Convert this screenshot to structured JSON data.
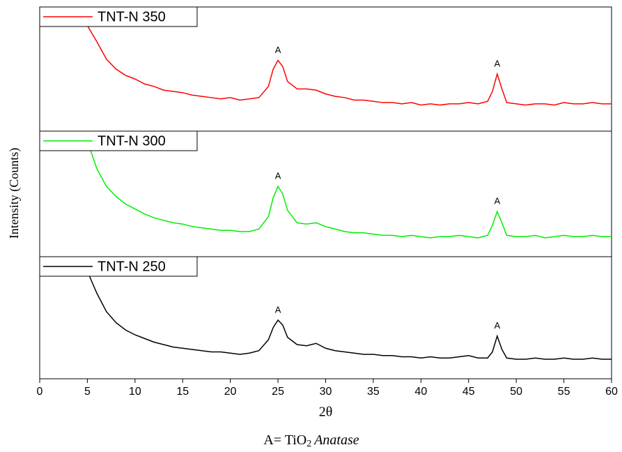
{
  "chart_data": [
    {
      "type": "line",
      "xlim": [
        0,
        60
      ],
      "ylim": [
        0,
        100
      ],
      "x": [
        5,
        6,
        7,
        8,
        9,
        10,
        11,
        12,
        13,
        14,
        15,
        16,
        17,
        18,
        19,
        20,
        21,
        22,
        23,
        24,
        24.5,
        25,
        25.5,
        26,
        27,
        28,
        29,
        30,
        31,
        32,
        33,
        34,
        35,
        36,
        37,
        38,
        39,
        40,
        41,
        42,
        43,
        44,
        45,
        46,
        47,
        47.5,
        48,
        48.5,
        49,
        50,
        51,
        52,
        53,
        54,
        55,
        56,
        57,
        58,
        59,
        60
      ],
      "series": [
        {
          "name": "TNT-N 350",
          "color": "#ff0000",
          "values": [
            85,
            72,
            58,
            50,
            45,
            42,
            38,
            36,
            33,
            32,
            31,
            29,
            28,
            27,
            26,
            27,
            25,
            26,
            27,
            36,
            50,
            57,
            52,
            40,
            34,
            34,
            33,
            30,
            28,
            27,
            25,
            25,
            24,
            23,
            23,
            22,
            23,
            21,
            22,
            21,
            22,
            22,
            23,
            22,
            24,
            32,
            46,
            34,
            23,
            22,
            21,
            22,
            22,
            21,
            23,
            22,
            22,
            23,
            22,
            22
          ]
        }
      ],
      "annotations": [
        {
          "text": "A",
          "x": 25
        },
        {
          "text": "A",
          "x": 48
        }
      ]
    },
    {
      "type": "line",
      "xlim": [
        0,
        60
      ],
      "ylim": [
        0,
        100
      ],
      "x": [
        5,
        6,
        7,
        8,
        9,
        10,
        11,
        12,
        13,
        14,
        15,
        16,
        17,
        18,
        19,
        20,
        21,
        22,
        23,
        24,
        24.5,
        25,
        25.5,
        26,
        27,
        28,
        29,
        30,
        31,
        32,
        33,
        34,
        35,
        36,
        37,
        38,
        39,
        40,
        41,
        42,
        43,
        44,
        45,
        46,
        47,
        47.5,
        48,
        48.5,
        49,
        50,
        51,
        52,
        53,
        54,
        55,
        56,
        57,
        58,
        59,
        60
      ],
      "series": [
        {
          "name": "TNT-N 300",
          "color": "#00ee00",
          "values": [
            92,
            70,
            56,
            48,
            42,
            38,
            34,
            31,
            29,
            27,
            26,
            24,
            23,
            22,
            21,
            21,
            20,
            20,
            22,
            32,
            47,
            56,
            50,
            37,
            27,
            26,
            27,
            24,
            22,
            20,
            19,
            19,
            18,
            17,
            17,
            16,
            17,
            16,
            15,
            16,
            16,
            17,
            16,
            15,
            17,
            25,
            36,
            27,
            17,
            16,
            16,
            17,
            15,
            16,
            17,
            16,
            16,
            17,
            16,
            16
          ]
        }
      ],
      "annotations": [
        {
          "text": "A",
          "x": 25
        },
        {
          "text": "A",
          "x": 48
        }
      ]
    },
    {
      "type": "line",
      "xlim": [
        0,
        60
      ],
      "ylim": [
        0,
        100
      ],
      "x": [
        5,
        6,
        7,
        8,
        9,
        10,
        11,
        12,
        13,
        14,
        15,
        16,
        17,
        18,
        19,
        20,
        21,
        22,
        23,
        24,
        24.5,
        25,
        25.5,
        26,
        27,
        28,
        29,
        30,
        31,
        32,
        33,
        34,
        35,
        36,
        37,
        38,
        39,
        40,
        41,
        42,
        43,
        44,
        45,
        46,
        47,
        47.5,
        48,
        48.5,
        49,
        50,
        51,
        52,
        53,
        54,
        55,
        56,
        57,
        58,
        59,
        60
      ],
      "series": [
        {
          "name": "TNT-N 250",
          "color": "#000000",
          "values": [
            88,
            70,
            55,
            46,
            40,
            36,
            33,
            30,
            28,
            26,
            25,
            24,
            23,
            22,
            22,
            21,
            20,
            21,
            23,
            32,
            42,
            48,
            44,
            34,
            28,
            27,
            29,
            25,
            23,
            22,
            21,
            20,
            20,
            19,
            19,
            18,
            18,
            17,
            18,
            17,
            17,
            18,
            19,
            17,
            17,
            22,
            35,
            24,
            17,
            16,
            16,
            17,
            16,
            16,
            17,
            16,
            16,
            17,
            16,
            16
          ]
        }
      ],
      "annotations": [
        {
          "text": "A",
          "x": 25
        },
        {
          "text": "A",
          "x": 48
        }
      ],
      "xticks": [
        0,
        5,
        10,
        15,
        20,
        25,
        30,
        35,
        40,
        45,
        50,
        55,
        60
      ],
      "xlabel": "2θ"
    }
  ],
  "ylabel": "Intensity (Counts)",
  "caption": {
    "prefix": "A= TiO",
    "subscript": "2",
    "emphasis": "Anatase"
  }
}
